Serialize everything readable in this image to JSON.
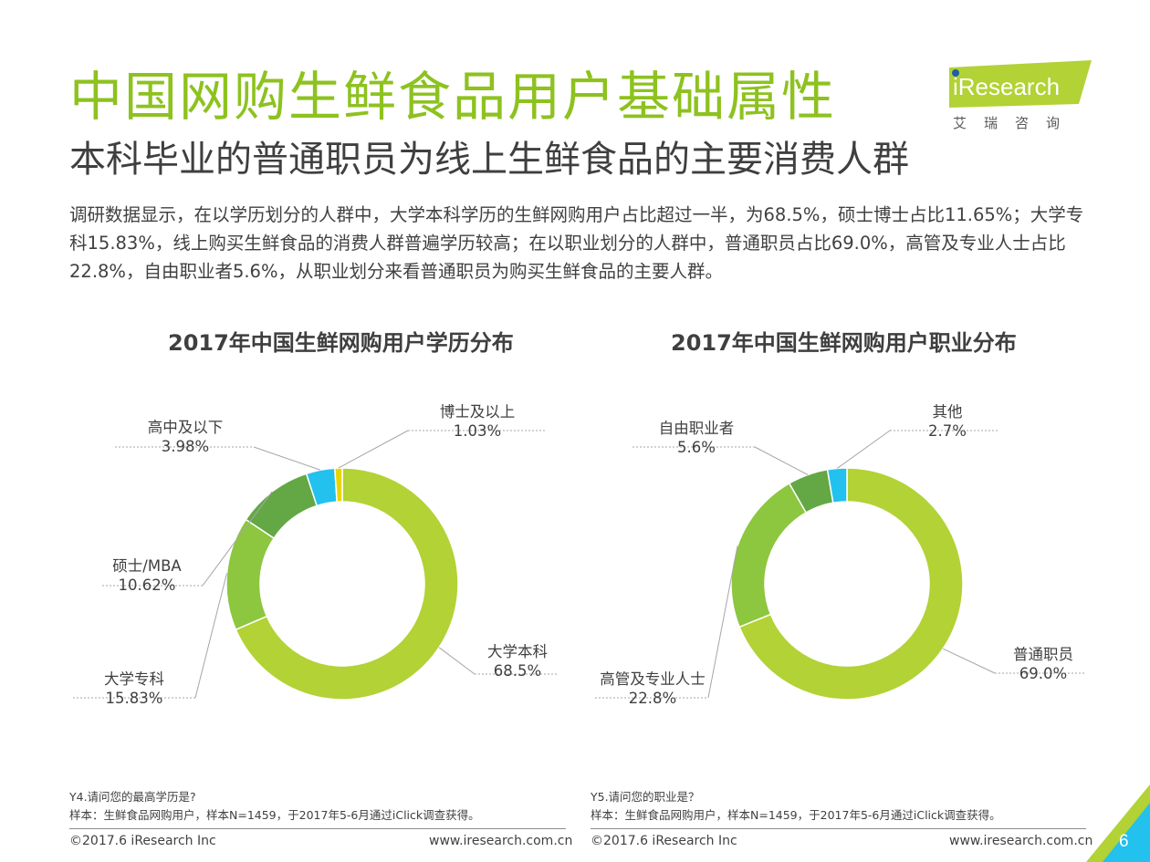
{
  "header": {
    "title": "中国网购生鲜食品用户基础属性",
    "subtitle": "本科毕业的普通职员为线上生鲜食品的主要消费人群",
    "summary": "调研数据显示，在以学历划分的人群中，大学本科学历的生鲜网购用户占比超过一半，为68.5%，硕士博士占比11.65%；大学专科15.83%，线上购买生鲜食品的消费人群普遍学历较高；在以职业划分的人群中，普通职员占比69.0%，高管及专业人士占比22.8%，自由职业者5.6%，从职业划分来看普通职员为购买生鲜食品的主要人群。"
  },
  "logo": {
    "brand": "iResearch",
    "brand_cn": "艾瑞咨询",
    "color": "#b2d235"
  },
  "chart_data": [
    {
      "type": "pie",
      "variant": "donut",
      "title": "2017年中国生鲜网购用户学历分布",
      "unit": "%",
      "slices": [
        {
          "name": "大学本科",
          "value": 68.5,
          "value_label": "68.5%",
          "color": "#b2d235"
        },
        {
          "name": "大学专科",
          "value": 15.83,
          "value_label": "15.83%",
          "color": "#8dc63f"
        },
        {
          "name": "硕士/MBA",
          "value": 10.62,
          "value_label": "10.62%",
          "color": "#63a844"
        },
        {
          "name": "高中及以下",
          "value": 3.98,
          "value_label": "3.98%",
          "color": "#22c1ee"
        },
        {
          "name": "博士及以上",
          "value": 1.03,
          "value_label": "1.03%",
          "color": "#e8d500"
        }
      ],
      "footnote": {
        "question": "Y4.请问您的最高学历是?",
        "sample": "样本：生鲜食品网购用户，样本N=1459，于2017年5-6月通过iClick调查获得。"
      }
    },
    {
      "type": "pie",
      "variant": "donut",
      "title": "2017年中国生鲜网购用户职业分布",
      "unit": "%",
      "slices": [
        {
          "name": "普通职员",
          "value": 69.0,
          "value_label": "69.0%",
          "color": "#b2d235"
        },
        {
          "name": "高管及专业人士",
          "value": 22.8,
          "value_label": "22.8%",
          "color": "#8dc63f"
        },
        {
          "name": "自由职业者",
          "value": 5.6,
          "value_label": "5.6%",
          "color": "#63a844"
        },
        {
          "name": "其他",
          "value": 2.7,
          "value_label": "2.7%",
          "color": "#22c1ee"
        }
      ],
      "footnote": {
        "question": "Y5.请问您的职业是？",
        "sample": "样本：生鲜食品网购用户，样本N=1459，于2017年5-6月通过iClick调查获得。"
      }
    }
  ],
  "footer": {
    "copyright": "©2017.6 iResearch Inc",
    "website": "www.iresearch.com.cn",
    "page_number": "6"
  }
}
